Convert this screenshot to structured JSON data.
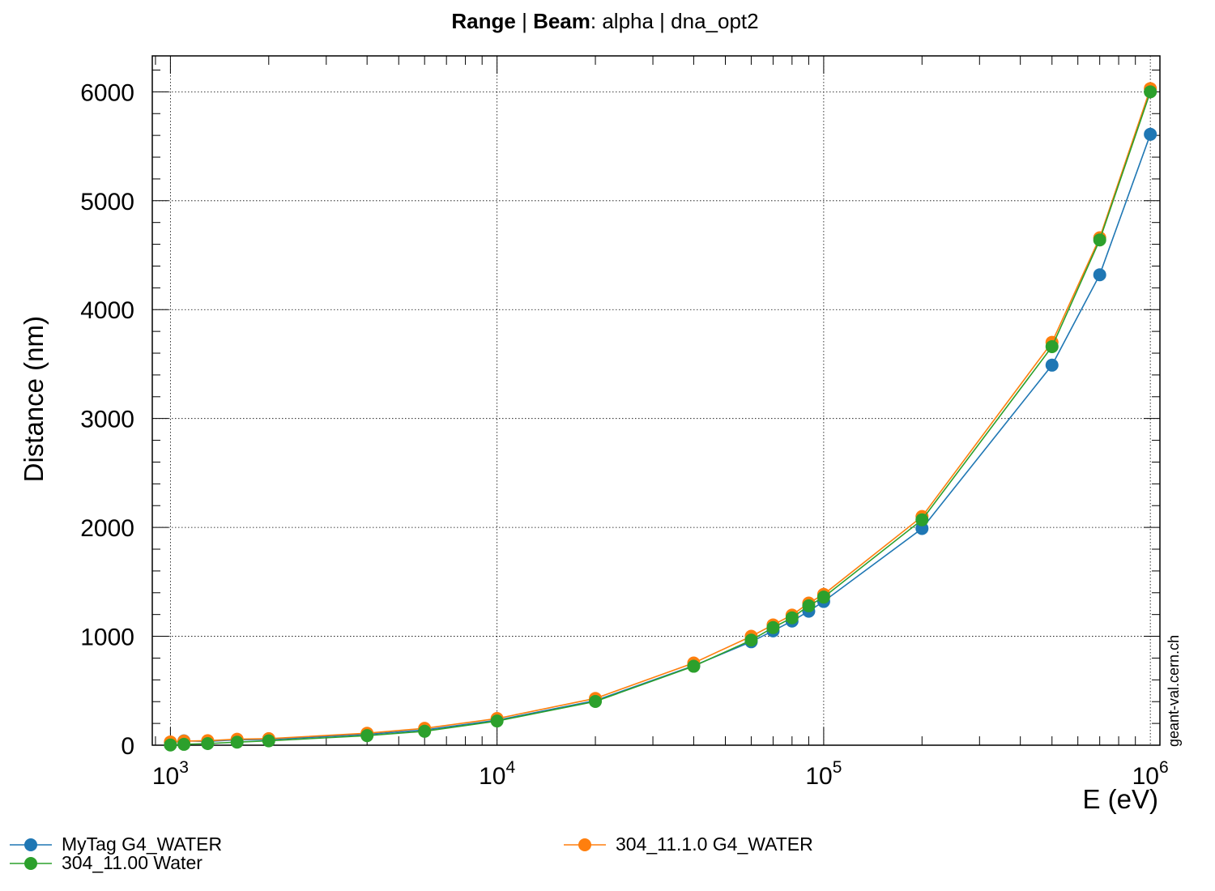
{
  "chart_data": {
    "type": "line",
    "title_parts": [
      "Range",
      " | ",
      "Beam",
      ": alpha | dna_opt2"
    ],
    "xlabel": "E (eV)",
    "ylabel": "Distance (nm)",
    "xscale": "log",
    "xlim": [
      880,
      1070000
    ],
    "ylim": [
      0,
      6330
    ],
    "x_ticks": [
      {
        "value": 1000,
        "base": "10",
        "exp": "3"
      },
      {
        "value": 10000,
        "base": "10",
        "exp": "4"
      },
      {
        "value": 100000,
        "base": "10",
        "exp": "5"
      },
      {
        "value": 1000000,
        "base": "10",
        "exp": "6"
      }
    ],
    "y_ticks": [
      0,
      1000,
      2000,
      3000,
      4000,
      5000,
      6000
    ],
    "y_tick_labels": [
      "0",
      "1000",
      "2000",
      "3000",
      "4000",
      "5000",
      "6000"
    ],
    "grid": true,
    "legend_position": "bottom",
    "watermark": "geant-val.cern.ch",
    "x": [
      1000,
      1100,
      1300,
      1600,
      2000,
      4000,
      6000,
      10000,
      20000,
      40000,
      60000,
      70000,
      80000,
      90000,
      100000,
      200000,
      500000,
      700000,
      1000000
    ],
    "series": [
      {
        "name": "MyTag G4_WATER",
        "color": "#1f77b4",
        "values": [
          25,
          40,
          35,
          50,
          52,
          100,
          140,
          230,
          410,
          730,
          950,
          1050,
          1140,
          1230,
          1320,
          1990,
          3490,
          4320,
          5610
        ]
      },
      {
        "name": "304_11.1.0 G4_WATER",
        "color": "#ff7f0e",
        "values": [
          30,
          38,
          42,
          55,
          60,
          110,
          155,
          245,
          430,
          755,
          1000,
          1105,
          1195,
          1305,
          1385,
          2100,
          3700,
          4660,
          6030
        ]
      },
      {
        "name": "304_11.00 Water",
        "color": "#2ca02c",
        "values": [
          2,
          8,
          15,
          28,
          40,
          88,
          128,
          222,
          402,
          725,
          965,
          1080,
          1170,
          1280,
          1360,
          2070,
          3660,
          4640,
          6000
        ]
      }
    ]
  }
}
